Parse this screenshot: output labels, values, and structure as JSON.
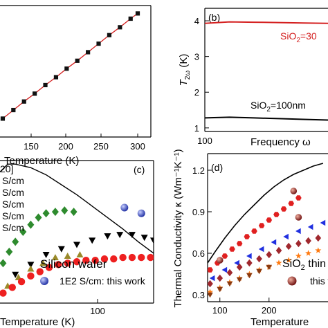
{
  "chart_data": [
    {
      "panel": "a",
      "type": "line",
      "xlabel": "Temperature (K)",
      "xticks": [
        "150",
        "200",
        "250",
        "300"
      ],
      "xlim": [
        100,
        320
      ],
      "ylim": [
        0,
        10
      ],
      "series": [
        {
          "color": "#d42020",
          "marker": "square",
          "x": [
            110,
            125,
            140,
            155,
            170,
            185,
            200,
            215,
            230,
            245,
            260,
            275,
            290,
            300
          ],
          "y": [
            1.4,
            2.05,
            2.7,
            3.3,
            3.95,
            4.55,
            5.2,
            5.8,
            6.45,
            7.1,
            7.75,
            8.35,
            9.0,
            9.4
          ]
        }
      ]
    },
    {
      "panel": "b",
      "type": "line",
      "panel_label": "(b)",
      "ylabel_main": "T",
      "ylabel_sub": "2ω",
      "ylabel_unit": " (K)",
      "xlabel": "Frequency ω",
      "xticks": [
        "100"
      ],
      "yticks": [
        "1",
        "2",
        "3",
        "4"
      ],
      "ylim": [
        0.9,
        4.35
      ],
      "series": [
        {
          "color": "#d42020",
          "label_main": "SiO",
          "label_sub": "2",
          "label_rest": "=30",
          "x": [
            0,
            0.2,
            0.4,
            0.6,
            0.8,
            1.0
          ],
          "y": [
            3.93,
            3.97,
            3.96,
            3.95,
            3.94,
            3.93
          ]
        },
        {
          "color": "#000000",
          "label_main": "SiO",
          "label_sub": "2",
          "label_rest": "=100nm",
          "x": [
            0,
            0.2,
            0.4,
            0.6,
            0.8,
            1.0
          ],
          "y": [
            1.28,
            1.3,
            1.28,
            1.26,
            1.24,
            1.22
          ]
        }
      ]
    },
    {
      "panel": "c",
      "type": "scatter",
      "panel_label": "(c)",
      "xlabel": "Temperature (K)",
      "xticks": [
        "100"
      ],
      "legend_entries": [
        "20]",
        "S/cm",
        "S/cm",
        "S/cm",
        "S/cm",
        "S/cm"
      ],
      "annotation": "Silicon wafer",
      "legend_this_work": "1E2 S/cm: this work",
      "this_work_color": "#2a40c0",
      "ylim": [
        0,
        1
      ],
      "line": {
        "color": "#000000",
        "x": [
          0.0,
          0.05,
          0.1,
          0.2,
          0.3,
          0.4,
          0.5,
          0.6,
          0.7,
          0.8,
          0.9,
          1.0
        ],
        "y": [
          0.92,
          0.975,
          0.975,
          0.95,
          0.9,
          0.83,
          0.76,
          0.68,
          0.6,
          0.52,
          0.43,
          0.35
        ]
      },
      "series": [
        {
          "color": "#2e8b2e",
          "marker": "diamond",
          "x": [
            0.02,
            0.06,
            0.1,
            0.15,
            0.2,
            0.25,
            0.3,
            0.36,
            0.42,
            0.48
          ],
          "y": [
            0.28,
            0.36,
            0.43,
            0.5,
            0.55,
            0.6,
            0.63,
            0.64,
            0.65,
            0.64
          ]
        },
        {
          "color": "#000000",
          "marker": "triangle-down",
          "x": [
            0.1,
            0.2,
            0.3,
            0.4,
            0.5,
            0.6,
            0.7,
            0.78,
            0.86,
            0.94,
            1.0
          ],
          "y": [
            0.2,
            0.27,
            0.34,
            0.38,
            0.41,
            0.44,
            0.47,
            0.48,
            0.48,
            0.46,
            0.44
          ]
        },
        {
          "color": "#9a8a2a",
          "marker": "triangle-up",
          "x": [
            0.05,
            0.12,
            0.2,
            0.28,
            0.36,
            0.44,
            0.52
          ],
          "y": [
            0.12,
            0.18,
            0.24,
            0.28,
            0.32,
            0.33,
            0.34
          ]
        },
        {
          "color": "#ee2020",
          "marker": "circle",
          "x": [
            0.02,
            0.08,
            0.14,
            0.2,
            0.26,
            0.32,
            0.38,
            0.44,
            0.5,
            0.56,
            0.62,
            0.68,
            0.74,
            0.8,
            0.86,
            0.92,
            0.98
          ],
          "y": [
            0.07,
            0.11,
            0.15,
            0.19,
            0.22,
            0.25,
            0.27,
            0.28,
            0.29,
            0.3,
            0.3,
            0.31,
            0.31,
            0.32,
            0.32,
            0.32,
            0.32
          ]
        },
        {
          "color": "#2a40c0",
          "marker": "sphere",
          "x": [
            0.81,
            0.92
          ],
          "y": [
            0.67,
            0.63
          ]
        }
      ]
    },
    {
      "panel": "d",
      "type": "scatter",
      "panel_label": "(d)",
      "ylabel": "Thermal Conductivity κ (Wm⁻¹K⁻¹)",
      "xlabel": "Temperature",
      "xticks": [
        "100",
        "200"
      ],
      "yticks": [
        "0.3",
        "0.6",
        "0.9",
        "1.2"
      ],
      "xlim": [
        75,
        320
      ],
      "ylim": [
        0.25,
        1.32
      ],
      "annotation_main": "SiO",
      "annotation_sub": "2",
      "annotation_rest": " thin",
      "legend_this_work": "this w",
      "line": {
        "color": "#000000",
        "x": [
          75,
          90,
          110,
          130,
          150,
          170,
          190,
          210,
          230,
          250,
          270,
          290,
          310
        ],
        "y": [
          0.53,
          0.61,
          0.71,
          0.8,
          0.88,
          0.95,
          1.02,
          1.08,
          1.13,
          1.17,
          1.2,
          1.23,
          1.25
        ]
      },
      "series": [
        {
          "color": "#e02020",
          "marker": "hexagon",
          "x": [
            80,
            95,
            110,
            125,
            140,
            155,
            170,
            185,
            200,
            215,
            230,
            245,
            260
          ],
          "y": [
            0.48,
            0.53,
            0.58,
            0.63,
            0.67,
            0.72,
            0.76,
            0.8,
            0.84,
            0.88,
            0.92,
            0.96,
            1.0
          ]
        },
        {
          "color": "#2030e0",
          "marker": "triangle-left",
          "x": [
            85,
            110,
            135,
            160,
            185,
            210,
            235,
            260,
            285,
            310
          ],
          "y": [
            0.42,
            0.48,
            0.53,
            0.58,
            0.63,
            0.68,
            0.72,
            0.76,
            0.79,
            0.82
          ]
        },
        {
          "color": "#a0282e",
          "marker": "diamond",
          "x": [
            80,
            100,
            120,
            140,
            160,
            180,
            200,
            220,
            240,
            260,
            280,
            300
          ],
          "y": [
            0.38,
            0.42,
            0.46,
            0.5,
            0.53,
            0.56,
            0.59,
            0.62,
            0.65,
            0.67,
            0.69,
            0.71
          ]
        },
        {
          "color": "#ff7a10",
          "marker": "star",
          "x": [
            80,
            100,
            120,
            140,
            160,
            180,
            200,
            220,
            240,
            260,
            280,
            300
          ],
          "y": [
            0.32,
            0.35,
            0.39,
            0.42,
            0.45,
            0.48,
            0.5,
            0.53,
            0.55,
            0.58,
            0.6,
            0.62
          ]
        },
        {
          "color": "#8a3a10",
          "marker": "triangle-down",
          "x": [
            80,
            100,
            120,
            140,
            160,
            180,
            200
          ],
          "y": [
            0.3,
            0.34,
            0.38,
            0.41,
            0.44,
            0.47,
            0.5
          ]
        },
        {
          "color": "#8a1a1a",
          "marker": "sphere",
          "x": [
            100,
            250,
            260
          ],
          "y": [
            0.55,
            1.05,
            0.86
          ]
        }
      ]
    }
  ]
}
